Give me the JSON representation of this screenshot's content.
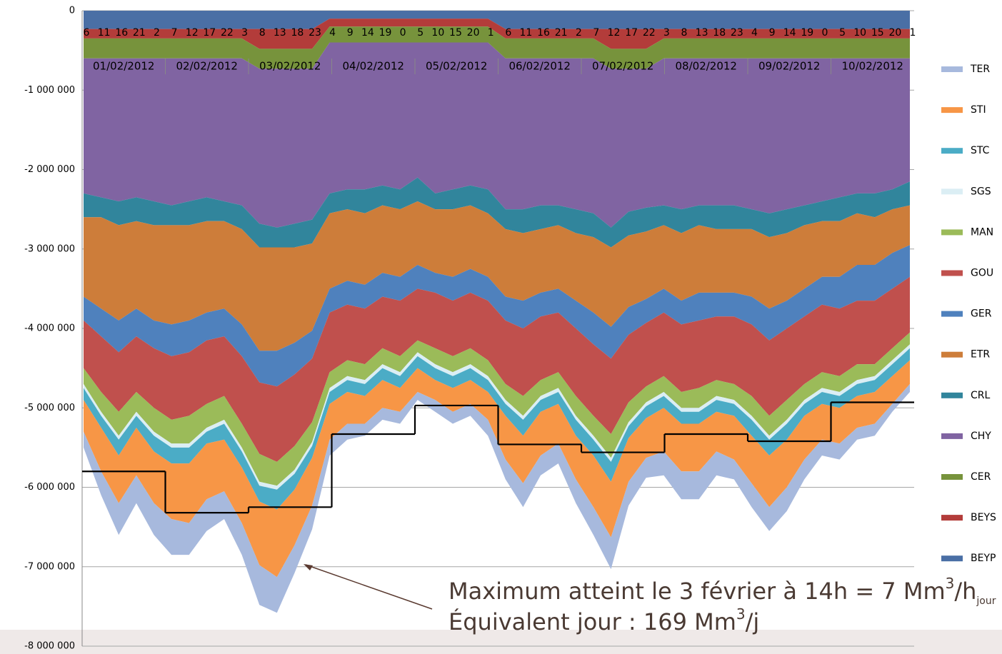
{
  "chart_data": {
    "type": "stacked_area",
    "categories": [
      "6",
      "11",
      "16",
      "21",
      "2",
      "7",
      "12",
      "17",
      "22",
      "3",
      "8",
      "13",
      "18",
      "23",
      "4",
      "9",
      "14",
      "19",
      "0",
      "5",
      "10",
      "15",
      "20",
      "1",
      "6",
      "11",
      "16",
      "21",
      "2",
      "7",
      "12",
      "17",
      "22",
      "3",
      "8",
      "13",
      "18",
      "23",
      "4",
      "9",
      "14",
      "19",
      "0",
      "5",
      "10",
      "15",
      "20",
      "1"
    ],
    "date_labels": [
      "01/02/2012",
      "02/02/2012",
      "03/02/2012",
      "04/02/2012",
      "05/02/2012",
      "06/02/2012",
      "07/02/2012",
      "08/02/2012",
      "09/02/2012",
      "10/02/2012"
    ],
    "ylim": [
      -8000000,
      0
    ],
    "yticks": [
      0,
      {
        "value": -1000000,
        "label": "-1 000 000"
      },
      {
        "value": -2000000,
        "label": "-2 000 000"
      },
      {
        "value": -3000000,
        "label": "-3 000 000"
      },
      {
        "value": -4000000,
        "label": "-4 000 000"
      },
      {
        "value": -5000000,
        "label": "-5 000 000"
      },
      {
        "value": -6000000,
        "label": "-6 000 000"
      },
      {
        "value": -7000000,
        "label": "-7 000 000"
      },
      {
        "value": -8000000,
        "label": "-8 000 000"
      }
    ],
    "grid": true,
    "legend": "right",
    "series": [
      {
        "name": "TER",
        "color": "#a7b9dd",
        "values": [
          -200000,
          -300000,
          -400000,
          -350000,
          -400000,
          -450000,
          -400000,
          -400000,
          -350000,
          -400000,
          -500000,
          -450000,
          -350000,
          -300000,
          -200000,
          -200000,
          -150000,
          -150000,
          -150000,
          -100000,
          -150000,
          -150000,
          -150000,
          -200000,
          -250000,
          -300000,
          -250000,
          -250000,
          -300000,
          -350000,
          -400000,
          -300000,
          -250000,
          -300000,
          -350000,
          -350000,
          -300000,
          -250000,
          -300000,
          -300000,
          -300000,
          -250000,
          -200000,
          -200000,
          -150000,
          -150000,
          -100000,
          -100000
        ]
      },
      {
        "name": "STI",
        "color": "#f79646",
        "values": [
          -400000,
          -550000,
          -600000,
          -600000,
          -650000,
          -700000,
          -750000,
          -700000,
          -650000,
          -700000,
          -800000,
          -850000,
          -700000,
          -600000,
          -450000,
          -400000,
          -350000,
          -350000,
          -300000,
          -300000,
          -250000,
          -300000,
          -300000,
          -350000,
          -550000,
          -600000,
          -550000,
          -500000,
          -550000,
          -650000,
          -700000,
          -550000,
          -500000,
          -550000,
          -600000,
          -600000,
          -500000,
          -550000,
          -600000,
          -650000,
          -600000,
          -550000,
          -450000,
          -450000,
          -400000,
          -400000,
          -350000,
          -300000
        ]
      },
      {
        "name": "STC",
        "color": "#4bacc6",
        "values": [
          -150000,
          -150000,
          -200000,
          -150000,
          -200000,
          -200000,
          -200000,
          -150000,
          -200000,
          -200000,
          -200000,
          -250000,
          -200000,
          -150000,
          -150000,
          -150000,
          -150000,
          -150000,
          -150000,
          -150000,
          -150000,
          -150000,
          -150000,
          -150000,
          -150000,
          -200000,
          -150000,
          -150000,
          -200000,
          -200000,
          -250000,
          -150000,
          -150000,
          -150000,
          -150000,
          -150000,
          -150000,
          -150000,
          -200000,
          -200000,
          -200000,
          -150000,
          -150000,
          -150000,
          -150000,
          -150000,
          -150000,
          -150000
        ]
      },
      {
        "name": "SGS",
        "color": "#dbeef4",
        "values": [
          -50000,
          -50000,
          -50000,
          -50000,
          -50000,
          -50000,
          -50000,
          -50000,
          -50000,
          -50000,
          -50000,
          -50000,
          -50000,
          -50000,
          -50000,
          -50000,
          -50000,
          -50000,
          -50000,
          -50000,
          -50000,
          -50000,
          -50000,
          -50000,
          -50000,
          -50000,
          -50000,
          -50000,
          -50000,
          -50000,
          -50000,
          -50000,
          -50000,
          -50000,
          -50000,
          -50000,
          -50000,
          -50000,
          -50000,
          -50000,
          -50000,
          -50000,
          -50000,
          -50000,
          -50000,
          -50000,
          -50000,
          -50000
        ]
      },
      {
        "name": "MAN",
        "color": "#9bbb59",
        "values": [
          -200000,
          -250000,
          -300000,
          -250000,
          -300000,
          -300000,
          -350000,
          -300000,
          -300000,
          -300000,
          -350000,
          -300000,
          -300000,
          -250000,
          -200000,
          -200000,
          -200000,
          -200000,
          -200000,
          -150000,
          -200000,
          -200000,
          -200000,
          -200000,
          -200000,
          -250000,
          -200000,
          -200000,
          -250000,
          -250000,
          -300000,
          -250000,
          -200000,
          -200000,
          -200000,
          -250000,
          -200000,
          -200000,
          -250000,
          -250000,
          -250000,
          -200000,
          -200000,
          -200000,
          -200000,
          -150000,
          -150000,
          -150000
        ]
      },
      {
        "name": "GOU",
        "color": "#c0504d",
        "values": [
          -600000,
          -700000,
          -750000,
          -700000,
          -750000,
          -800000,
          -800000,
          -800000,
          -750000,
          -850000,
          -900000,
          -950000,
          -900000,
          -800000,
          -750000,
          -700000,
          -700000,
          -650000,
          -700000,
          -650000,
          -700000,
          -700000,
          -700000,
          -750000,
          -800000,
          -850000,
          -800000,
          -750000,
          -850000,
          -900000,
          -950000,
          -850000,
          -800000,
          -800000,
          -850000,
          -850000,
          -800000,
          -850000,
          -900000,
          -950000,
          -900000,
          -850000,
          -850000,
          -850000,
          -800000,
          -800000,
          -750000,
          -700000
        ]
      },
      {
        "name": "GER",
        "color": "#4f81bd",
        "values": [
          -300000,
          -350000,
          -400000,
          -350000,
          -350000,
          -400000,
          -400000,
          -350000,
          -350000,
          -400000,
          -400000,
          -450000,
          -400000,
          -350000,
          -300000,
          -300000,
          -300000,
          -300000,
          -300000,
          -300000,
          -250000,
          -300000,
          -300000,
          -300000,
          -300000,
          -350000,
          -300000,
          -300000,
          -350000,
          -400000,
          -400000,
          -350000,
          -300000,
          -300000,
          -300000,
          -350000,
          -300000,
          -300000,
          -350000,
          -400000,
          -350000,
          -350000,
          -350000,
          -400000,
          -450000,
          -450000,
          -450000,
          -400000
        ]
      },
      {
        "name": "ETR",
        "color": "#cd7d3a",
        "values": [
          -1000000,
          -1150000,
          -1200000,
          -1100000,
          -1200000,
          -1250000,
          -1200000,
          -1150000,
          -1100000,
          -1200000,
          -1300000,
          -1300000,
          -1200000,
          -1100000,
          -950000,
          -900000,
          -900000,
          -850000,
          -850000,
          -800000,
          -800000,
          -850000,
          -800000,
          -800000,
          -850000,
          -850000,
          -800000,
          -800000,
          -850000,
          -950000,
          -1000000,
          -900000,
          -850000,
          -800000,
          -850000,
          -850000,
          -800000,
          -800000,
          -850000,
          -900000,
          -850000,
          -800000,
          -700000,
          -700000,
          -650000,
          -600000,
          -550000,
          -500000
        ]
      },
      {
        "name": "CRL",
        "color": "#31859c",
        "values": [
          -300000,
          -250000,
          -300000,
          -300000,
          -300000,
          -250000,
          -300000,
          -300000,
          -250000,
          -300000,
          -300000,
          -250000,
          -300000,
          -300000,
          -250000,
          -250000,
          -300000,
          -250000,
          -250000,
          -300000,
          -200000,
          -250000,
          -250000,
          -300000,
          -250000,
          -300000,
          -300000,
          -250000,
          -300000,
          -300000,
          -250000,
          -300000,
          -300000,
          -250000,
          -300000,
          -250000,
          -300000,
          -300000,
          -250000,
          -300000,
          -300000,
          -250000,
          -250000,
          -300000,
          -250000,
          -300000,
          -250000,
          -300000
        ]
      },
      {
        "name": "CHY",
        "color": "#8064a2",
        "values": [
          -1700000,
          -1750000,
          -1800000,
          -1750000,
          -1800000,
          -1850000,
          -1800000,
          -1750000,
          -1800000,
          -1850000,
          -1950000,
          -2000000,
          -1950000,
          -1900000,
          -1900000,
          -1850000,
          -1850000,
          -1800000,
          -1850000,
          -1700000,
          -1900000,
          -1850000,
          -1800000,
          -1850000,
          -1900000,
          -1900000,
          -1850000,
          -1850000,
          -1900000,
          -1950000,
          -2000000,
          -1800000,
          -1750000,
          -1850000,
          -1900000,
          -1850000,
          -1850000,
          -1850000,
          -1900000,
          -1950000,
          -1900000,
          -1850000,
          -1800000,
          -1750000,
          -1700000,
          -1700000,
          -1650000,
          -1550000
        ]
      },
      {
        "name": "CER",
        "color": "#77933c",
        "values": [
          -250000,
          -250000,
          -250000,
          -250000,
          -250000,
          -250000,
          -250000,
          -250000,
          -250000,
          -250000,
          -250000,
          -250000,
          -250000,
          -250000,
          -200000,
          -200000,
          -200000,
          -200000,
          -200000,
          -200000,
          -200000,
          -200000,
          -200000,
          -200000,
          -250000,
          -250000,
          -250000,
          -250000,
          -250000,
          -250000,
          -250000,
          -250000,
          -250000,
          -250000,
          -250000,
          -250000,
          -250000,
          -250000,
          -250000,
          -250000,
          -250000,
          -250000,
          -250000,
          -250000,
          -250000,
          -250000,
          -250000,
          -250000
        ]
      },
      {
        "name": "BEYS",
        "color": "#b33c3a",
        "values": [
          -120000,
          -120000,
          -120000,
          -120000,
          -120000,
          -120000,
          -120000,
          -120000,
          -120000,
          -120000,
          -250000,
          -250000,
          -250000,
          -250000,
          -100000,
          -100000,
          -100000,
          -100000,
          -100000,
          -100000,
          -100000,
          -100000,
          -100000,
          -100000,
          -120000,
          -120000,
          -120000,
          -120000,
          -120000,
          -120000,
          -250000,
          -250000,
          -250000,
          -120000,
          -120000,
          -120000,
          -120000,
          -120000,
          -120000,
          -120000,
          -120000,
          -120000,
          -120000,
          -120000,
          -120000,
          -120000,
          -120000,
          -120000
        ]
      },
      {
        "name": "BEYP",
        "color": "#4a6fa5",
        "values": [
          -230000,
          -230000,
          -230000,
          -230000,
          -230000,
          -230000,
          -230000,
          -230000,
          -230000,
          -230000,
          -230000,
          -230000,
          -230000,
          -230000,
          -100000,
          -100000,
          -100000,
          -100000,
          -100000,
          -100000,
          -100000,
          -100000,
          -100000,
          -100000,
          -230000,
          -230000,
          -230000,
          -230000,
          -230000,
          -230000,
          -230000,
          -230000,
          -230000,
          -230000,
          -230000,
          -230000,
          -230000,
          -230000,
          -230000,
          -230000,
          -230000,
          -230000,
          -230000,
          -230000,
          -230000,
          -230000,
          -230000,
          -230000
        ]
      }
    ],
    "daily_line": {
      "color": "#000000",
      "values": [
        -5800000,
        -6320000,
        -6250000,
        -5330000,
        -4970000,
        -5460000,
        -5560000,
        -5330000,
        -5420000,
        -4930000
      ]
    },
    "annotation": {
      "line1": "Maximum atteint le 3 février à 14h = 7 Mm",
      "line1_sup": "3",
      "line1_unit": "/h",
      "line1_sub": "jour",
      "line2": "Équivalent jour : 169 Mm",
      "line2_sup": "3",
      "line2_unit": "/j"
    }
  }
}
